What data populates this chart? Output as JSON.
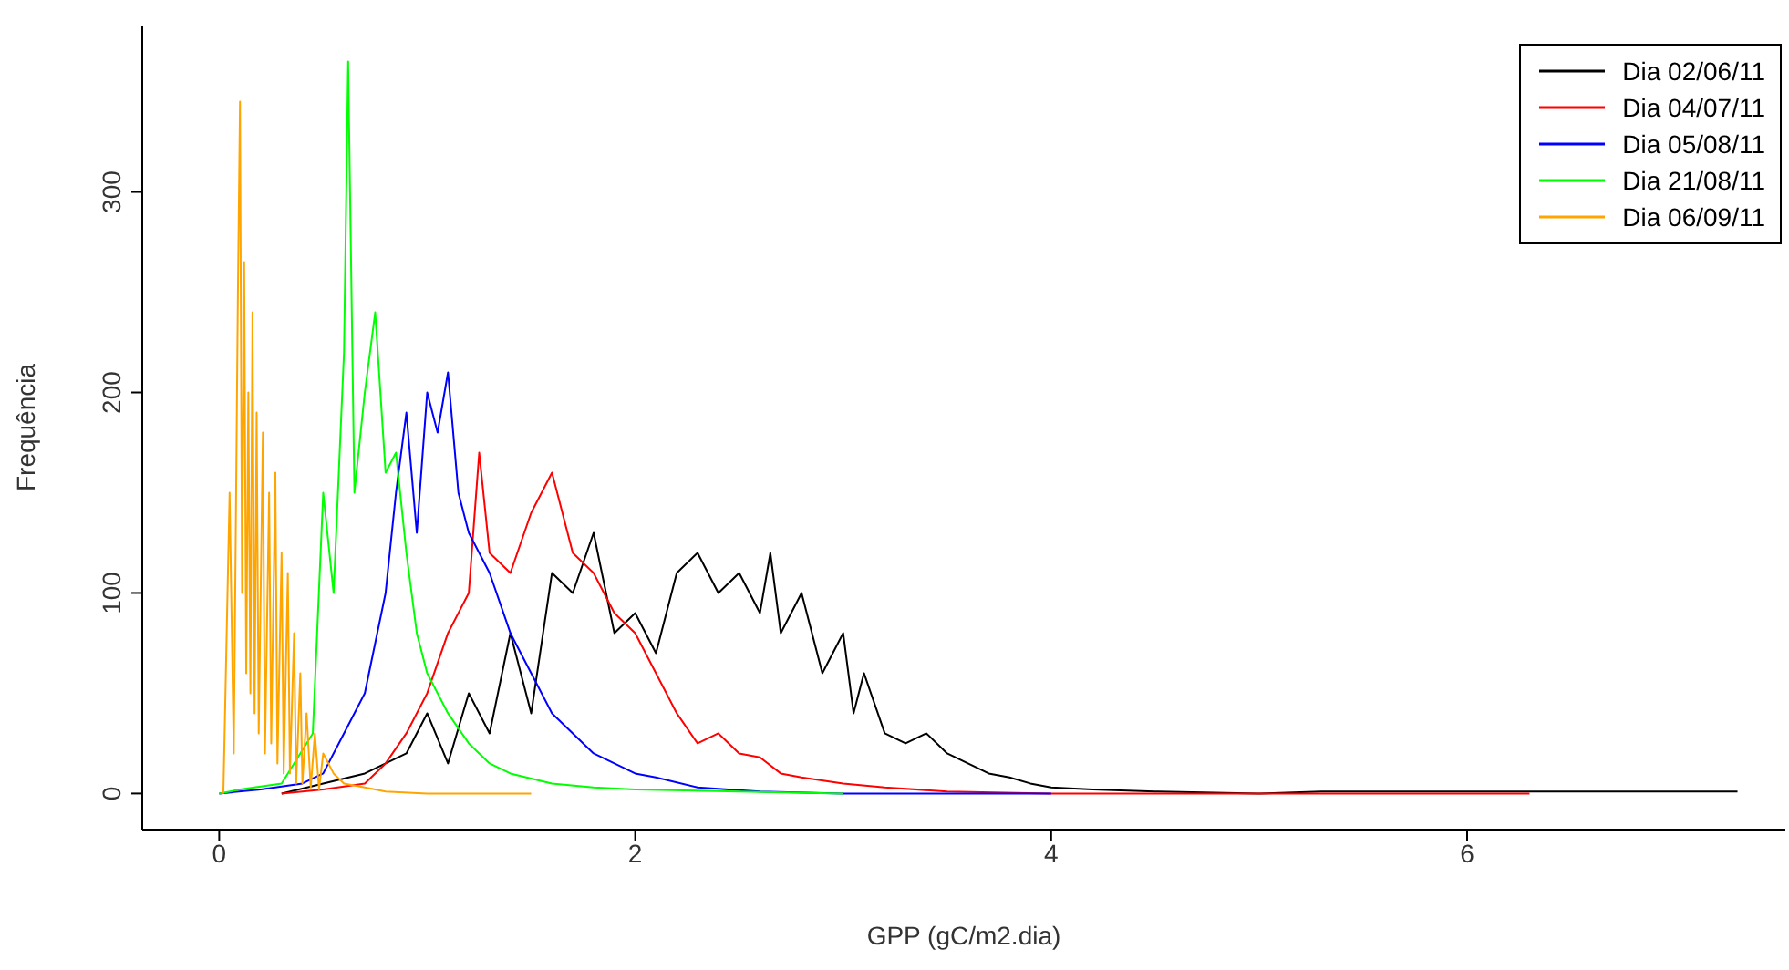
{
  "chart_data": {
    "type": "line",
    "xlabel": "GPP (gC/m2.dia)",
    "ylabel": "Frequência",
    "xlim": [
      -0.37,
      7.53
    ],
    "ylim": [
      -18,
      383
    ],
    "xticks": [
      0,
      2,
      4,
      6
    ],
    "yticks": [
      0,
      100,
      200,
      300
    ],
    "legend": "top right",
    "marker": "none",
    "line_style": "solid",
    "series": [
      {
        "name": "Dia 02/06/11",
        "color": "#000000",
        "x": [
          0.3,
          0.5,
          0.7,
          0.9,
          1.0,
          1.1,
          1.2,
          1.3,
          1.4,
          1.5,
          1.6,
          1.7,
          1.8,
          1.9,
          2.0,
          2.1,
          2.2,
          2.3,
          2.4,
          2.5,
          2.6,
          2.65,
          2.7,
          2.8,
          2.9,
          3.0,
          3.05,
          3.1,
          3.2,
          3.3,
          3.4,
          3.5,
          3.6,
          3.7,
          3.8,
          3.9,
          4.0,
          4.2,
          4.5,
          5.0,
          5.3,
          6.3,
          7.3
        ],
        "values": [
          0,
          5,
          10,
          20,
          40,
          15,
          50,
          30,
          80,
          40,
          110,
          100,
          130,
          80,
          90,
          70,
          110,
          120,
          100,
          110,
          90,
          120,
          80,
          100,
          60,
          80,
          40,
          60,
          30,
          25,
          30,
          20,
          15,
          10,
          8,
          5,
          3,
          2,
          1,
          0,
          1,
          1,
          1
        ]
      },
      {
        "name": "Dia 04/07/11",
        "color": "#ff0000",
        "x": [
          0.3,
          0.5,
          0.7,
          0.8,
          0.9,
          1.0,
          1.1,
          1.2,
          1.25,
          1.3,
          1.4,
          1.5,
          1.6,
          1.7,
          1.8,
          1.9,
          2.0,
          2.1,
          2.2,
          2.3,
          2.4,
          2.5,
          2.6,
          2.7,
          2.8,
          3.0,
          3.2,
          3.5,
          4.0,
          5.0,
          6.3
        ],
        "values": [
          0,
          2,
          5,
          15,
          30,
          50,
          80,
          100,
          170,
          120,
          110,
          140,
          160,
          120,
          110,
          90,
          80,
          60,
          40,
          25,
          30,
          20,
          18,
          10,
          8,
          5,
          3,
          1,
          0,
          0,
          0
        ]
      },
      {
        "name": "Dia 05/08/11",
        "color": "#0000ff",
        "x": [
          0.0,
          0.2,
          0.4,
          0.5,
          0.6,
          0.7,
          0.8,
          0.85,
          0.9,
          0.95,
          1.0,
          1.05,
          1.1,
          1.15,
          1.2,
          1.3,
          1.4,
          1.5,
          1.6,
          1.7,
          1.8,
          1.9,
          2.0,
          2.1,
          2.3,
          2.6,
          3.0,
          4.0
        ],
        "values": [
          0,
          2,
          5,
          10,
          30,
          50,
          100,
          150,
          190,
          130,
          200,
          180,
          210,
          150,
          130,
          110,
          80,
          60,
          40,
          30,
          20,
          15,
          10,
          8,
          3,
          1,
          0,
          0
        ]
      },
      {
        "name": "Dia 21/08/11",
        "color": "#00ff00",
        "x": [
          0.0,
          0.1,
          0.3,
          0.45,
          0.5,
          0.55,
          0.6,
          0.62,
          0.65,
          0.7,
          0.75,
          0.8,
          0.85,
          0.9,
          0.95,
          1.0,
          1.1,
          1.2,
          1.3,
          1.4,
          1.6,
          1.8,
          2.0,
          2.5,
          3.0
        ],
        "values": [
          0,
          2,
          5,
          30,
          150,
          100,
          220,
          365,
          150,
          200,
          240,
          160,
          170,
          120,
          80,
          60,
          40,
          25,
          15,
          10,
          5,
          3,
          2,
          1,
          0
        ]
      },
      {
        "name": "Dia 06/09/11",
        "color": "#ffa500",
        "x": [
          0.02,
          0.05,
          0.07,
          0.09,
          0.1,
          0.11,
          0.12,
          0.13,
          0.14,
          0.15,
          0.16,
          0.17,
          0.18,
          0.19,
          0.21,
          0.22,
          0.24,
          0.25,
          0.27,
          0.28,
          0.3,
          0.31,
          0.33,
          0.34,
          0.36,
          0.37,
          0.39,
          0.4,
          0.42,
          0.44,
          0.46,
          0.48,
          0.5,
          0.55,
          0.6,
          0.7,
          0.8,
          1.0,
          1.5
        ],
        "values": [
          0,
          150,
          20,
          250,
          345,
          100,
          265,
          60,
          200,
          50,
          240,
          40,
          190,
          30,
          180,
          20,
          150,
          25,
          160,
          15,
          120,
          10,
          110,
          10,
          80,
          5,
          60,
          5,
          40,
          3,
          30,
          2,
          20,
          10,
          5,
          3,
          1,
          0,
          0
        ]
      }
    ]
  }
}
